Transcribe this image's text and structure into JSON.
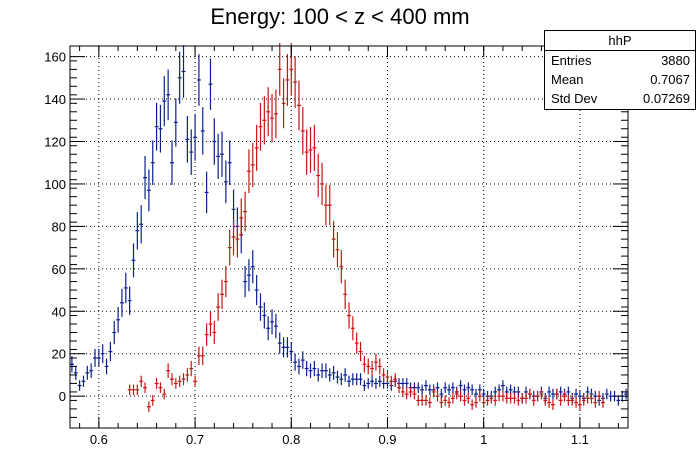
{
  "chart_data": {
    "type": "scatter",
    "title": "Energy: 100 < z < 400 mm",
    "xlabel": "",
    "ylabel": "",
    "xlim": [
      0.57,
      1.15
    ],
    "ylim": [
      -15,
      165
    ],
    "grid": true,
    "x_ticks": [
      0.6,
      0.7,
      0.8,
      0.9,
      1.0,
      1.1
    ],
    "x_tick_labels": [
      "0.6",
      "0.7",
      "0.8",
      "0.9",
      "1",
      "1.1"
    ],
    "y_ticks": [
      0,
      20,
      40,
      60,
      80,
      100,
      120,
      140,
      160
    ],
    "y_tick_labels": [
      "0",
      "20",
      "40",
      "60",
      "80",
      "100",
      "120",
      "140",
      "160"
    ],
    "stats_box": {
      "name": "hhP",
      "rows": [
        {
          "label": "Entries",
          "value": "3880"
        },
        {
          "label": "Mean",
          "value": "0.7067"
        },
        {
          "label": "Std Dev",
          "value": "0.07269"
        }
      ]
    },
    "bin_width": 0.004,
    "series": [
      {
        "color": "#0b1f8f",
        "x_start": 0.572,
        "values": [
          15,
          11,
          5,
          7,
          11,
          12,
          18,
          18,
          20,
          14,
          21,
          30,
          36,
          44,
          51,
          45,
          64,
          78,
          81,
          103,
          97,
          110,
          127,
          126,
          139,
          142,
          110,
          129,
          150,
          153,
          121,
          115,
          122,
          149,
          125,
          96,
          147,
          120,
          113,
          114,
          101,
          110,
          88,
          80,
          76,
          54,
          57,
          61,
          50,
          42,
          38,
          32,
          35,
          33,
          25,
          23,
          23,
          21,
          16,
          14,
          17,
          13,
          12,
          13,
          10,
          12,
          12,
          10,
          11,
          9,
          8,
          10,
          7,
          8,
          8,
          8,
          5,
          6,
          7,
          6,
          7,
          6,
          6,
          5,
          7,
          6,
          6,
          6,
          4,
          4,
          4,
          3,
          5,
          3,
          3,
          4,
          1,
          4,
          3,
          4,
          2,
          5,
          3,
          4,
          3,
          1,
          3,
          1,
          0,
          0,
          2,
          3,
          5,
          2,
          3,
          2,
          2,
          -1,
          2,
          1,
          0,
          0,
          2,
          -1,
          2,
          1,
          1,
          2,
          1,
          2,
          -1,
          1,
          0,
          -1,
          2,
          1,
          0,
          -2,
          -1,
          1,
          0,
          0,
          -2,
          0,
          1
        ]
      },
      {
        "color": "#c81414",
        "x_start": 0.632,
        "values": [
          3,
          3,
          3,
          7,
          4,
          -5,
          -2,
          6,
          4,
          1,
          12,
          8,
          6,
          7,
          8,
          10,
          13,
          7,
          19,
          19,
          29,
          34,
          30,
          42,
          48,
          54,
          70,
          75,
          74,
          84,
          87,
          106,
          109,
          117,
          127,
          130,
          134,
          131,
          133,
          154,
          138,
          149,
          154,
          148,
          137,
          125,
          115,
          116,
          117,
          104,
          100,
          90,
          90,
          74,
          69,
          61,
          48,
          38,
          32,
          25,
          21,
          15,
          14,
          13,
          16,
          14,
          10,
          9,
          7,
          8,
          4,
          2,
          1,
          2,
          1,
          -2,
          -2,
          -2,
          -3,
          2,
          0,
          -3,
          -2,
          -3,
          -1,
          1,
          0,
          -2,
          -1,
          -4,
          -3,
          0,
          -3,
          -2,
          -1,
          -2,
          0,
          0,
          -1,
          -1,
          -1,
          -2,
          -1,
          -1,
          1,
          -2,
          0,
          1,
          -2,
          -3,
          -4,
          1,
          -2,
          0,
          -2,
          -2,
          -3,
          -4,
          -2,
          -1,
          -1,
          -3,
          0,
          -3
        ]
      }
    ]
  }
}
